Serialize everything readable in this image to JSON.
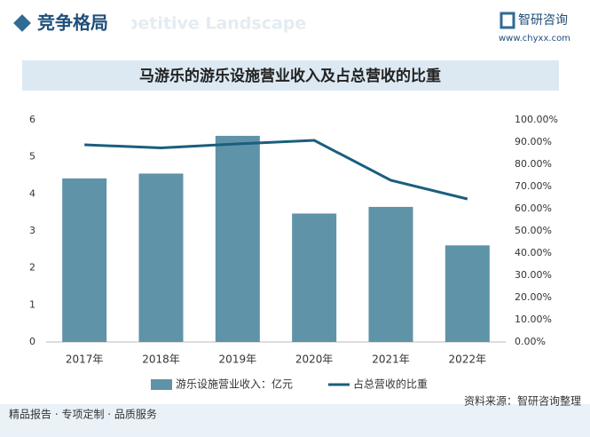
{
  "header": {
    "title": "竞争格局",
    "subtitle": "Competitive Landscape",
    "logo": "智研咨询",
    "url": "www.chyxx.com"
  },
  "chart_data": {
    "type": "bar_line",
    "title": "马游乐的游乐设施营业收入及占总营收的比重",
    "categories": [
      "2017年",
      "2018年",
      "2019年",
      "2020年",
      "2021年",
      "2022年"
    ],
    "series": [
      {
        "name": "游乐设施营业收入：亿元",
        "color": "#5f93a8",
        "type": "bar",
        "values": [
          4.42,
          4.55,
          5.57,
          3.47,
          3.65,
          2.61
        ]
      },
      {
        "name": "占总营收的比重",
        "color": "#1b5e7e",
        "type": "line",
        "axis": "y2",
        "values": [
          88.8,
          87.4,
          89.2,
          90.8,
          72.8,
          64.4
        ]
      }
    ],
    "ylim": [
      0,
      6
    ],
    "yticks": [
      0,
      1,
      2,
      3,
      4,
      5,
      6
    ],
    "y2lim": [
      0,
      100
    ],
    "y2ticks": [
      {
        "value": 0,
        "label": "0.00%"
      },
      {
        "value": 10,
        "label": "10.00%"
      },
      {
        "value": 20,
        "label": "20.00%"
      },
      {
        "value": 30,
        "label": "30.00%"
      },
      {
        "value": 40,
        "label": "40.00%"
      },
      {
        "value": 50,
        "label": "50.00%"
      },
      {
        "value": 60,
        "label": "60.00%"
      },
      {
        "value": 70,
        "label": "70.00%"
      },
      {
        "value": 80,
        "label": "80.00%"
      },
      {
        "value": 90,
        "label": "90.00%"
      },
      {
        "value": 100,
        "label": "100.00%"
      }
    ],
    "grid": false,
    "legend": "bottom"
  },
  "footer": {
    "left": "精品报告 · 专项定制 · 品质服务",
    "source": "资料来源：智研咨询整理"
  }
}
